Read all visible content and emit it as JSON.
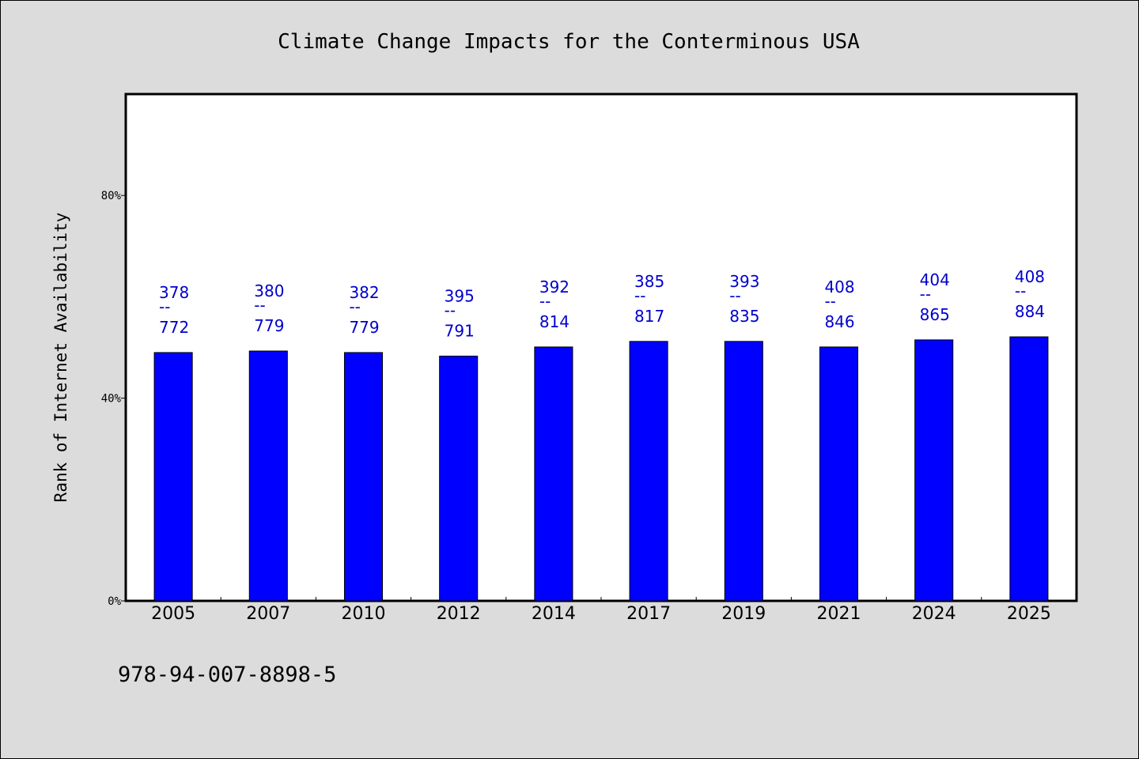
{
  "chart_data": {
    "type": "bar",
    "title": "Climate Change Impacts for the Conterminous USA",
    "ylabel": "Rank of Internet Availability",
    "xlabel": "",
    "ylim": [
      0,
      100
    ],
    "yticks": [
      {
        "value": 0,
        "label": "0%"
      },
      {
        "value": 40,
        "label": "40%"
      },
      {
        "value": 80,
        "label": "80%"
      }
    ],
    "grid": false,
    "legend": "none",
    "categories": [
      "2005",
      "2007",
      "2010",
      "2012",
      "2014",
      "2017",
      "2019",
      "2021",
      "2024",
      "2025"
    ],
    "values": [
      49.0,
      49.3,
      49.0,
      48.3,
      50.1,
      51.2,
      51.2,
      50.1,
      51.5,
      52.1
    ],
    "data_labels": [
      {
        "top": "378",
        "bottom": "772"
      },
      {
        "top": "380",
        "bottom": "779"
      },
      {
        "top": "382",
        "bottom": "779"
      },
      {
        "top": "395",
        "bottom": "791"
      },
      {
        "top": "392",
        "bottom": "814"
      },
      {
        "top": "385",
        "bottom": "817"
      },
      {
        "top": "393",
        "bottom": "835"
      },
      {
        "top": "408",
        "bottom": "846"
      },
      {
        "top": "404",
        "bottom": "865"
      },
      {
        "top": "408",
        "bottom": "884"
      }
    ],
    "data_label_separator": "--",
    "colors": {
      "bar": "#0000ff",
      "bar_edge": "#000000",
      "data_label": "#0000cd",
      "plot_background": "#ffffff",
      "figure_background": "#dcdcdc"
    }
  },
  "footnote": "978-94-007-8898-5"
}
